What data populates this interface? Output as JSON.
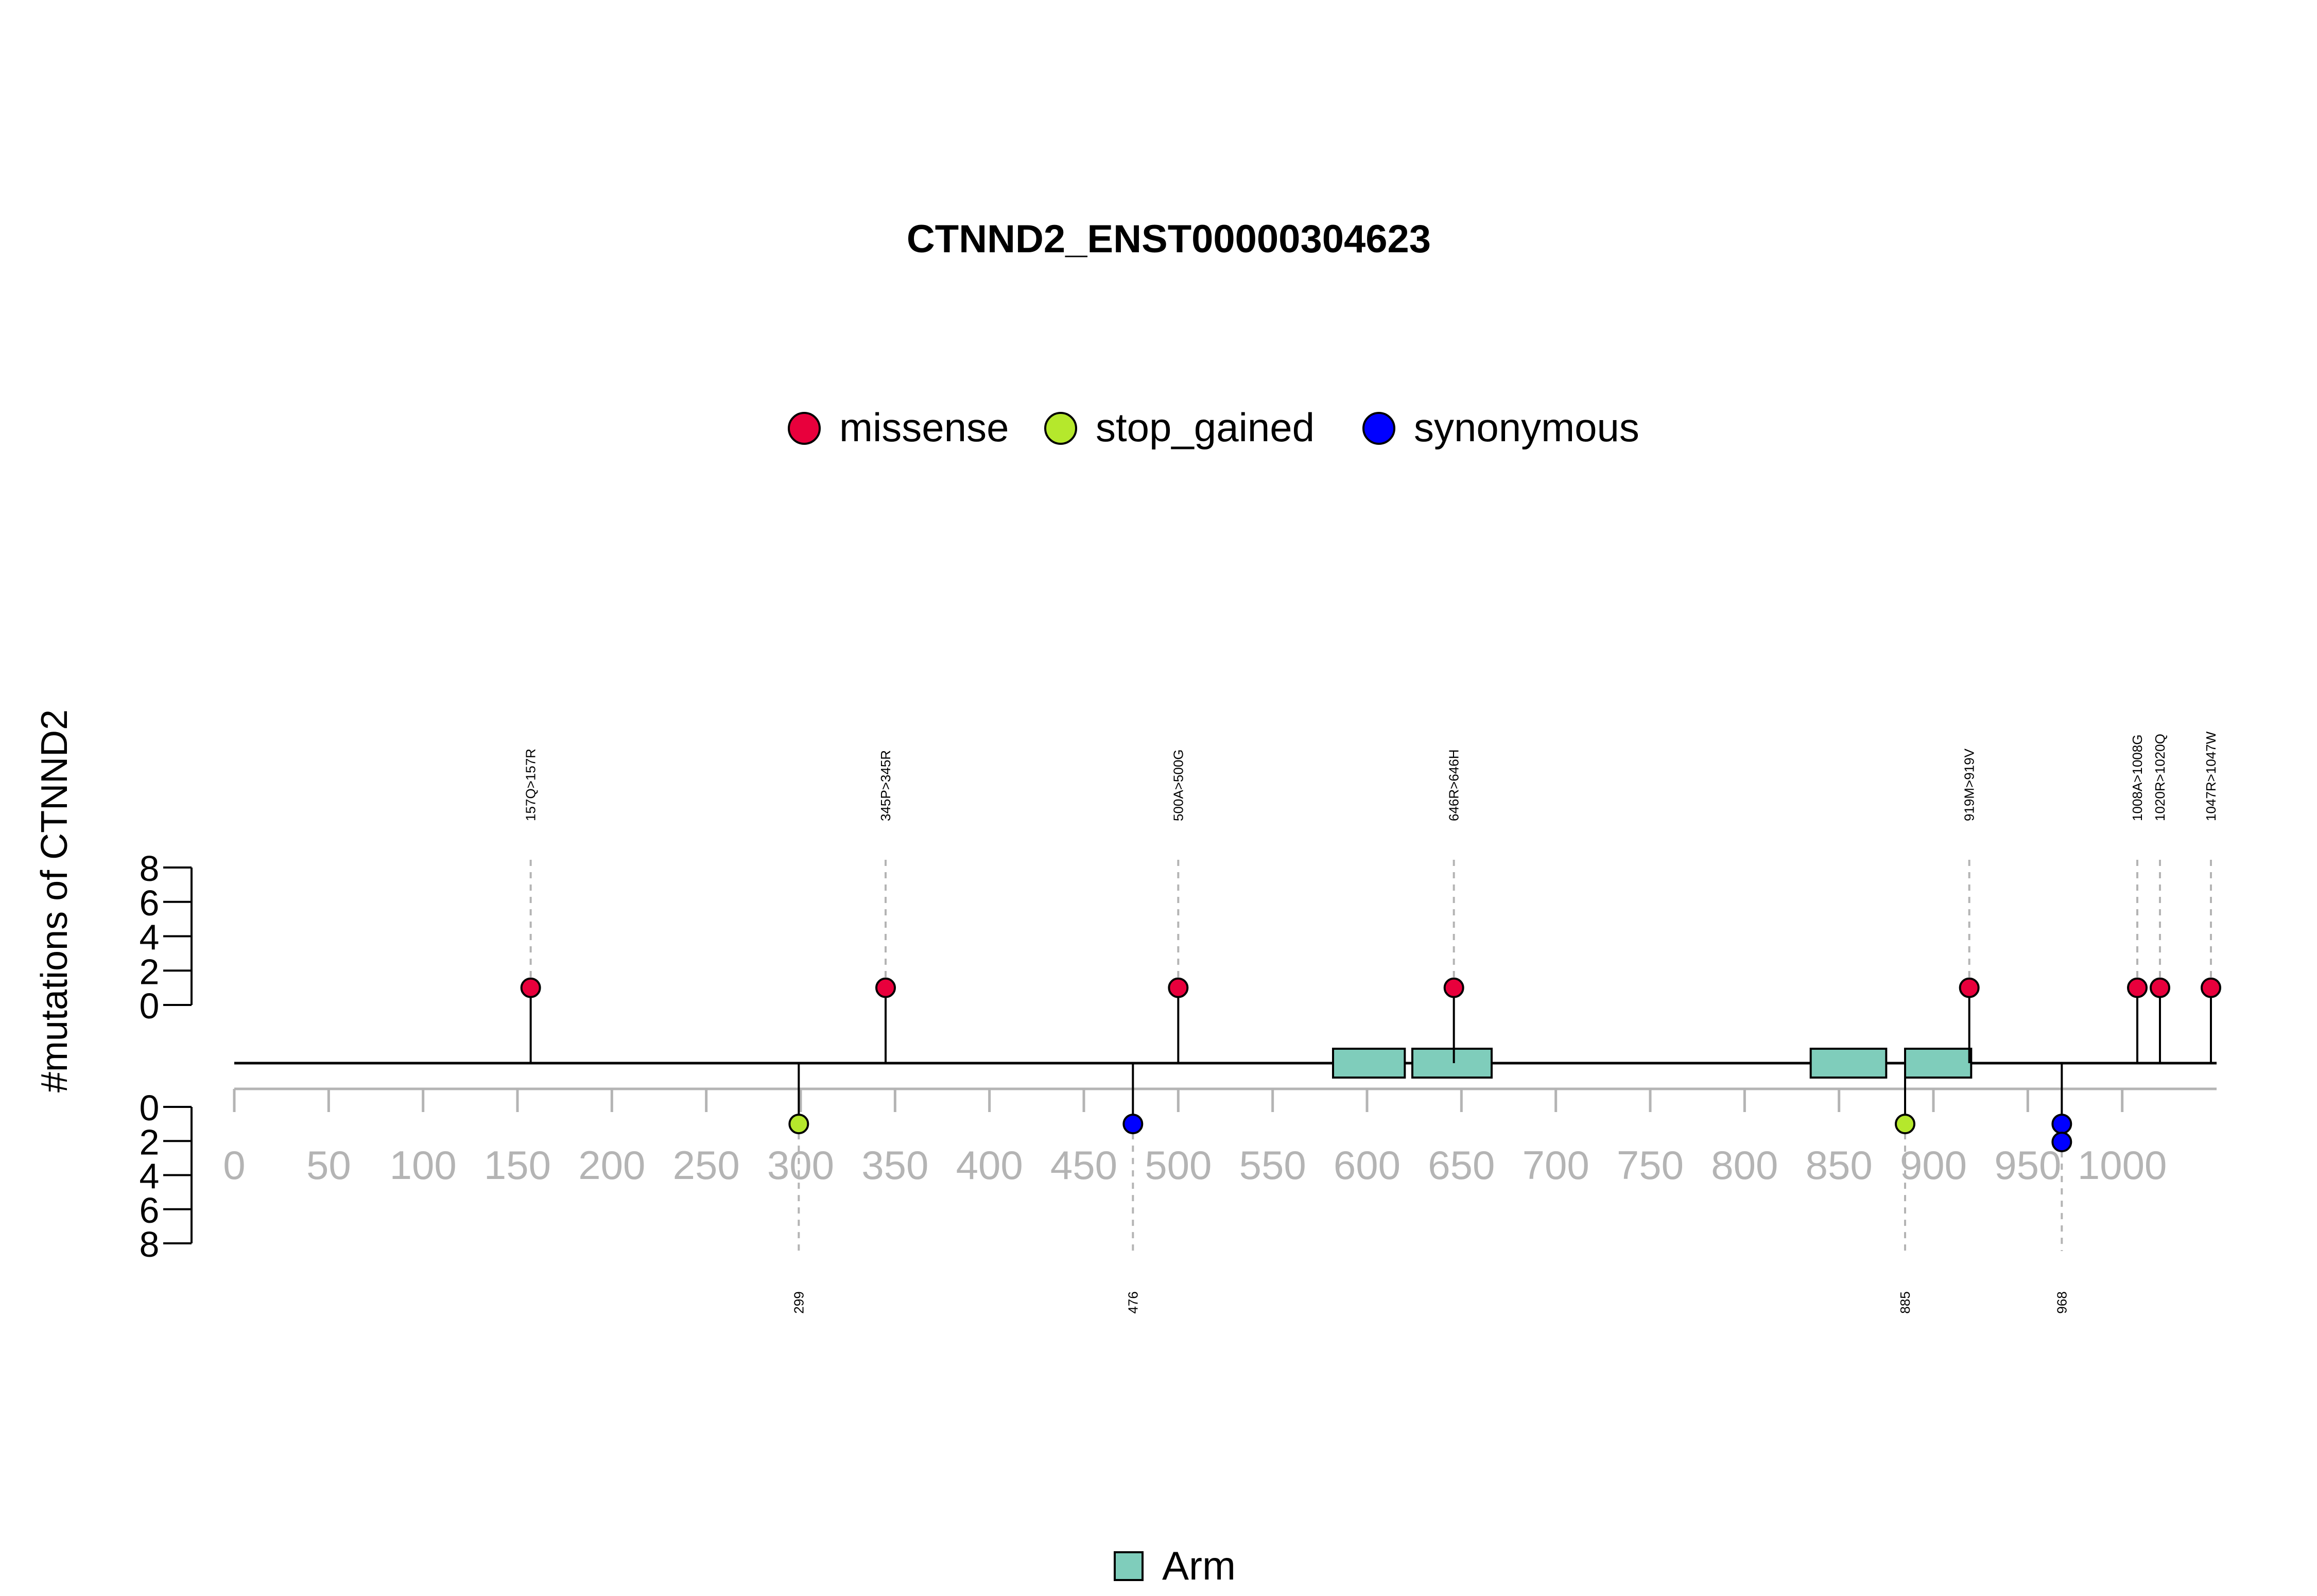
{
  "chart_data": {
    "type": "lollipop",
    "title": "CTNND2_ENST00000304623",
    "ylabel": "#mutations of CTNND2",
    "x_ticks": [
      0,
      50,
      100,
      150,
      200,
      250,
      300,
      350,
      400,
      450,
      500,
      550,
      600,
      650,
      700,
      750,
      800,
      850,
      900,
      950,
      1000
    ],
    "xlim": [
      0,
      1050
    ],
    "y_ticks_top": [
      0,
      2,
      4,
      6,
      8
    ],
    "y_ticks_bottom": [
      0,
      2,
      4,
      6,
      8
    ],
    "ylim": [
      0,
      8
    ],
    "legend": [
      {
        "label": "missense",
        "color": "#e8003c"
      },
      {
        "label": "stop_gained",
        "color": "#b5e82c"
      },
      {
        "label": "synonymous",
        "color": "#0000ff"
      }
    ],
    "mutations_top": [
      {
        "label": "157Q>157R",
        "position": 157,
        "count": 1,
        "type": "missense"
      },
      {
        "label": "345P>345R",
        "position": 345,
        "count": 1,
        "type": "missense"
      },
      {
        "label": "500A>500G",
        "position": 500,
        "count": 1,
        "type": "missense"
      },
      {
        "label": "646R>646H",
        "position": 646,
        "count": 1,
        "type": "missense"
      },
      {
        "label": "919M>919V",
        "position": 919,
        "count": 1,
        "type": "missense"
      },
      {
        "label": "1008A>1008G",
        "position": 1008,
        "count": 1,
        "type": "missense"
      },
      {
        "label": "1020R>1020Q",
        "position": 1020,
        "count": 1,
        "type": "missense"
      },
      {
        "label": "1047R>1047W",
        "position": 1047,
        "count": 1,
        "type": "missense"
      }
    ],
    "mutations_bottom": [
      {
        "label": "299",
        "position": 299,
        "count": 1,
        "type": "stop_gained"
      },
      {
        "label": "476",
        "position": 476,
        "count": 1,
        "type": "synonymous"
      },
      {
        "label": "885",
        "position": 885,
        "count": 1,
        "type": "stop_gained"
      },
      {
        "label": "968",
        "position": 968,
        "count": 2,
        "type": "synonymous"
      }
    ],
    "domains": [
      {
        "name": "Arm",
        "start": 582,
        "end": 620
      },
      {
        "name": "Arm",
        "start": 624,
        "end": 666
      },
      {
        "name": "Arm",
        "start": 835,
        "end": 875
      },
      {
        "name": "Arm",
        "start": 885,
        "end": 920
      }
    ],
    "domain_legend": [
      {
        "label": "Arm",
        "color": "#7fcdbb"
      }
    ]
  }
}
